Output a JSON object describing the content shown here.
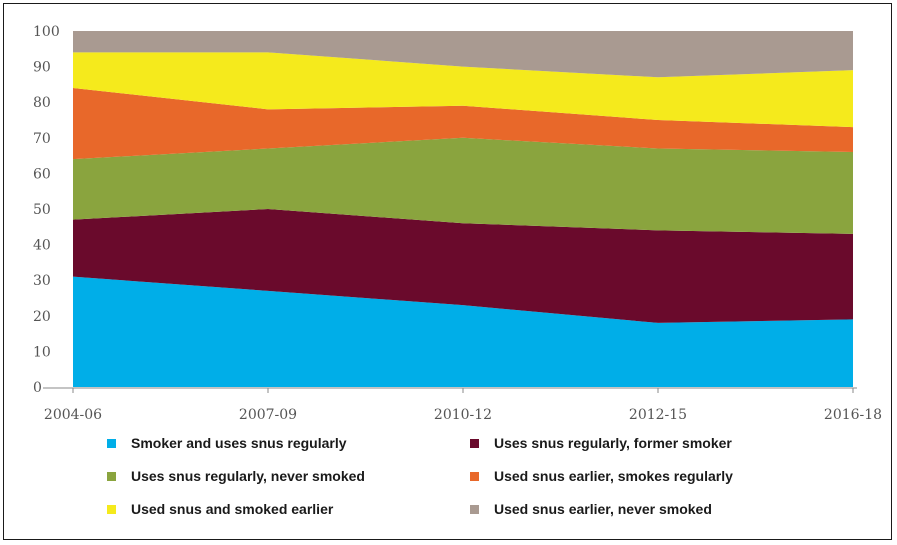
{
  "chart_data": {
    "type": "area",
    "stacked": true,
    "categories": [
      "2004-06",
      "2007-09",
      "2010-12",
      "2012-15",
      "2016-18"
    ],
    "ylim": [
      0,
      100
    ],
    "yticks": [
      0,
      10,
      20,
      30,
      40,
      50,
      60,
      70,
      80,
      90,
      100
    ],
    "grid": false,
    "legend_position": "bottom",
    "series": [
      {
        "name": "Smoker and uses snus regularly",
        "color": "#00aee8",
        "values": [
          31,
          27,
          23,
          18,
          19
        ]
      },
      {
        "name": "Uses snus regularly, former smoker",
        "color": "#6a0a2c",
        "values": [
          16,
          23,
          23,
          26,
          24
        ]
      },
      {
        "name": "Uses snus regularly, never smoked",
        "color": "#8aa43e",
        "values": [
          17,
          17,
          24,
          23,
          23
        ]
      },
      {
        "name": "Used snus earlier, smokes regularly",
        "color": "#e8682a",
        "values": [
          20,
          11,
          9,
          8,
          7
        ]
      },
      {
        "name": "Used snus and smoked earlier",
        "color": "#f5ea1c",
        "values": [
          10,
          16,
          11,
          12,
          16
        ]
      },
      {
        "name": "Used snus earlier, never smoked",
        "color": "#a99a91",
        "values": [
          6,
          6,
          10,
          13,
          11
        ]
      }
    ],
    "legend_order": [
      0,
      1,
      2,
      3,
      4,
      5
    ]
  }
}
